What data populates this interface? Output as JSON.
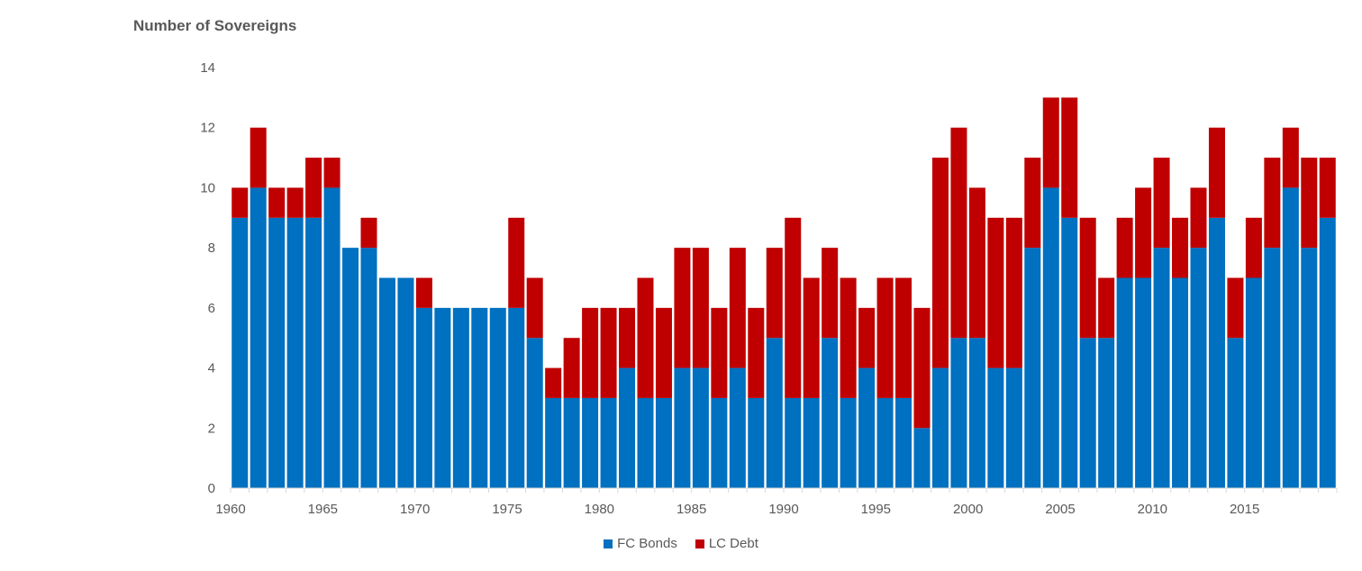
{
  "chart_data": {
    "type": "bar",
    "stacked": true,
    "title": "Number of Sovereigns",
    "xlabel": "",
    "ylabel": "",
    "ylim": [
      0,
      14
    ],
    "yticks": [
      0,
      2,
      4,
      6,
      8,
      10,
      12,
      14
    ],
    "x": [
      1960,
      1961,
      1962,
      1963,
      1964,
      1965,
      1966,
      1967,
      1968,
      1969,
      1970,
      1971,
      1972,
      1973,
      1974,
      1975,
      1976,
      1977,
      1978,
      1979,
      1980,
      1981,
      1982,
      1983,
      1984,
      1985,
      1986,
      1987,
      1988,
      1989,
      1990,
      1991,
      1992,
      1993,
      1994,
      1995,
      1996,
      1997,
      1998,
      1999,
      2000,
      2001,
      2002,
      2003,
      2004,
      2005,
      2006,
      2007,
      2008,
      2009,
      2010,
      2011,
      2012,
      2013,
      2014,
      2015,
      2016,
      2017,
      2018,
      2019
    ],
    "xtick_labels": [
      "1960",
      "1965",
      "1970",
      "1975",
      "1980",
      "1985",
      "1990",
      "1995",
      "2000",
      "2005",
      "2010",
      "2015"
    ],
    "series": [
      {
        "name": "FC Bonds",
        "color": "#0070C0",
        "values": [
          9,
          10,
          9,
          9,
          9,
          10,
          8,
          8,
          7,
          7,
          6,
          6,
          6,
          6,
          6,
          6,
          5,
          3,
          3,
          3,
          3,
          4,
          3,
          3,
          4,
          4,
          3,
          4,
          3,
          5,
          3,
          3,
          5,
          3,
          4,
          3,
          3,
          2,
          4,
          5,
          5,
          4,
          4,
          8,
          10,
          9,
          5,
          5,
          7,
          7,
          8,
          7,
          8,
          9,
          5,
          7,
          8,
          10,
          8,
          9
        ]
      },
      {
        "name": "LC Debt",
        "color": "#C00000",
        "values": [
          1,
          2,
          1,
          1,
          2,
          1,
          0,
          1,
          0,
          0,
          1,
          0,
          0,
          0,
          0,
          3,
          2,
          1,
          2,
          3,
          3,
          2,
          4,
          3,
          4,
          4,
          3,
          4,
          3,
          3,
          6,
          4,
          3,
          4,
          2,
          4,
          4,
          4,
          7,
          7,
          5,
          5,
          5,
          3,
          3,
          4,
          4,
          2,
          2,
          3,
          3,
          2,
          2,
          3,
          2,
          2,
          3,
          2,
          3,
          2
        ]
      }
    ],
    "grid": false,
    "legend_position": "bottom"
  }
}
